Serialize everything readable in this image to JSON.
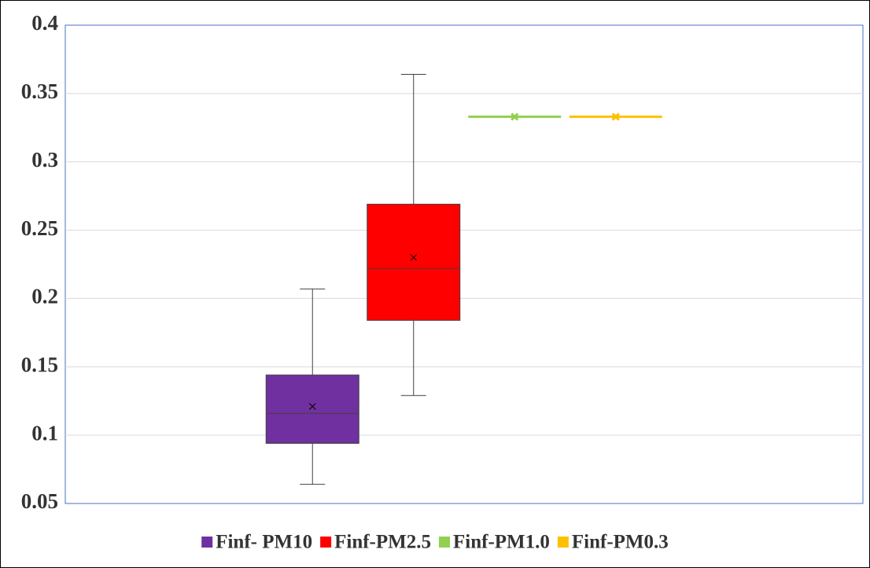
{
  "chart_data": {
    "type": "box",
    "ylim": [
      0.05,
      0.4
    ],
    "yticks": [
      0.05,
      0.1,
      0.15,
      0.2,
      0.25,
      0.3,
      0.35,
      0.4
    ],
    "grid": true,
    "legend": "bottom",
    "series": [
      {
        "name": "Finf- PM10",
        "color": "#7030a0",
        "min": 0.064,
        "q1": 0.094,
        "median": 0.116,
        "q3": 0.144,
        "max": 0.207,
        "mean": 0.121
      },
      {
        "name": "Finf-PM2.5",
        "color": "#ff0000",
        "min": 0.129,
        "q1": 0.184,
        "median": 0.222,
        "q3": 0.269,
        "max": 0.364,
        "mean": 0.23
      },
      {
        "name": "Finf-PM1.0",
        "color": "#92d050",
        "min": 0.333,
        "q1": 0.333,
        "median": 0.333,
        "q3": 0.333,
        "max": 0.333,
        "mean": 0.333
      },
      {
        "name": "Finf-PM0.3",
        "color": "#ffc000",
        "min": 0.333,
        "q1": 0.333,
        "median": 0.333,
        "q3": 0.333,
        "max": 0.333,
        "mean": 0.333
      }
    ]
  }
}
